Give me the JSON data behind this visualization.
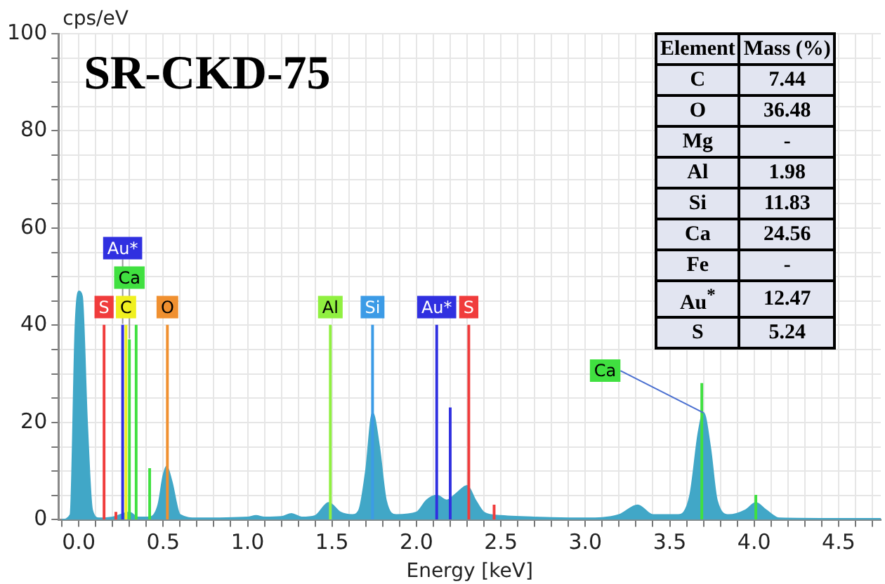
{
  "chart_data": [
    {
      "type": "area",
      "title": "SR-CKD-75",
      "xlabel": "Energy [keV]",
      "ylabel": "cps/eV",
      "xlim": [
        -0.12,
        4.75
      ],
      "ylim": [
        0,
        100
      ],
      "grid": true,
      "legend": false,
      "xticks": [
        {
          "value": -0.1,
          "label": null
        },
        {
          "value": 0,
          "label": "0.0"
        },
        {
          "value": 0.1,
          "label": null
        },
        {
          "value": 0.2,
          "label": null
        },
        {
          "value": 0.3,
          "label": null
        },
        {
          "value": 0.4,
          "label": null
        },
        0.5,
        {
          "value": 0.6,
          "label": null
        },
        {
          "value": 0.7,
          "label": null
        },
        {
          "value": 0.8,
          "label": null
        },
        {
          "value": 0.9,
          "label": null
        },
        {
          "value": 1,
          "label": "1.0"
        },
        {
          "value": 1.1,
          "label": null
        },
        {
          "value": 1.2,
          "label": null
        },
        {
          "value": 1.3,
          "label": null
        },
        {
          "value": 1.4,
          "label": null
        },
        1.5,
        {
          "value": 1.6,
          "label": null
        },
        {
          "value": 1.7,
          "label": null
        },
        {
          "value": 1.8,
          "label": null
        },
        {
          "value": 1.9,
          "label": null
        },
        {
          "value": 2,
          "label": "2.0"
        },
        {
          "value": 2.1,
          "label": null
        },
        {
          "value": 2.2,
          "label": null
        },
        {
          "value": 2.3,
          "label": null
        },
        {
          "value": 2.4,
          "label": null
        },
        2.5,
        {
          "value": 2.6,
          "label": null
        },
        {
          "value": 2.7,
          "label": null
        },
        {
          "value": 2.8,
          "label": null
        },
        {
          "value": 2.9,
          "label": null
        },
        {
          "value": 3,
          "label": "3.0"
        },
        {
          "value": 3.1,
          "label": null
        },
        {
          "value": 3.2,
          "label": null
        },
        {
          "value": 3.3,
          "label": null
        },
        {
          "value": 3.4,
          "label": null
        },
        3.5,
        {
          "value": 3.6,
          "label": null
        },
        {
          "value": 3.7,
          "label": null
        },
        {
          "value": 3.8,
          "label": null
        },
        {
          "value": 3.9,
          "label": null
        },
        {
          "value": 4,
          "label": "4.0"
        },
        {
          "value": 4.1,
          "label": null
        },
        {
          "value": 4.2,
          "label": null
        },
        {
          "value": 4.3,
          "label": null
        },
        {
          "value": 4.4,
          "label": null
        },
        4.5,
        {
          "value": 4.6,
          "label": null
        },
        {
          "value": 4.7,
          "label": null
        }
      ],
      "yticks": [
        0,
        {
          "value": 5,
          "label": null
        },
        {
          "value": 10,
          "label": null
        },
        {
          "value": 15,
          "label": null
        },
        20,
        {
          "value": 25,
          "label": null
        },
        {
          "value": 30,
          "label": null
        },
        {
          "value": 35,
          "label": null
        },
        40,
        {
          "value": 45,
          "label": null
        },
        {
          "value": 50,
          "label": null
        },
        {
          "value": 55,
          "label": null
        },
        60,
        {
          "value": 65,
          "label": null
        },
        {
          "value": 70,
          "label": null
        },
        {
          "value": 75,
          "label": null
        },
        80,
        {
          "value": 85,
          "label": null
        },
        {
          "value": 90,
          "label": null
        },
        {
          "value": 95,
          "label": null
        },
        100
      ],
      "series": [
        {
          "color": "#41a7c7",
          "x": [
            -0.1,
            -0.05,
            -0.02,
            0,
            0.02,
            0.05,
            0.08,
            0.12,
            0.2,
            0.3,
            0.35,
            0.42,
            0.47,
            0.5,
            0.52,
            0.55,
            0.6,
            0.7,
            1.0,
            1.05,
            1.1,
            1.2,
            1.26,
            1.32,
            1.4,
            1.48,
            1.55,
            1.62,
            1.66,
            1.7,
            1.74,
            1.78,
            1.82,
            1.88,
            2.0,
            2.06,
            2.12,
            2.18,
            2.24,
            2.3,
            2.35,
            2.4,
            2.5,
            2.8,
            3.0,
            3.2,
            3.31,
            3.4,
            3.55,
            3.62,
            3.67,
            3.7,
            3.74,
            3.78,
            3.85,
            3.95,
            4.01,
            4.07,
            4.15,
            4.5,
            4.75
          ],
          "values": [
            0,
            1,
            40,
            47,
            46,
            20,
            2,
            0.3,
            0.5,
            1.5,
            0.5,
            0.5,
            3,
            9,
            11,
            8,
            1,
            0.3,
            0.5,
            0.8,
            0.5,
            0.6,
            1.2,
            0.5,
            0.8,
            3.5,
            1.5,
            1,
            2,
            10,
            22,
            15,
            4,
            1,
            1.5,
            4,
            5,
            4,
            5.5,
            7,
            4,
            1.5,
            0.8,
            0.4,
            0.3,
            1,
            3,
            1,
            1,
            5,
            18,
            22,
            15,
            4,
            1,
            2,
            3.5,
            2,
            0.3,
            0.2,
            0.2
          ]
        },
        {
          "type": "bar",
          "x": [
            0.15,
            0.22,
            0.26,
            0.28,
            0.3,
            0.34,
            0.42,
            0.525,
            1.49,
            1.74,
            2.12,
            2.2,
            2.31,
            2.46,
            3.69,
            4.01
          ],
          "values": [
            40,
            1.5,
            40,
            40,
            37,
            40,
            10.5,
            40,
            40,
            40,
            40,
            23,
            40,
            3,
            28,
            5
          ],
          "colors": [
            "#f03c3c",
            "#f03c3c",
            "#3030e0",
            "#f0f020",
            "#40e040",
            "#40e040",
            "#40e040",
            "#f09030",
            "#90f040",
            "#3c9be6",
            "#3030e0",
            "#3030e0",
            "#f03c3c",
            "#f03c3c",
            "#40e040",
            "#40e040"
          ]
        }
      ],
      "annotations": [
        {
          "text": "C",
          "x": 0.28,
          "y": 40
        },
        {
          "text": "S",
          "x": 0.15,
          "y": 40
        },
        {
          "text": "Ca",
          "x": 0.3,
          "y": 37
        },
        {
          "text": "Au*",
          "x": 0.26,
          "y": 40
        },
        {
          "text": "O",
          "x": 0.525,
          "y": 40
        },
        {
          "text": "Al",
          "x": 1.49,
          "y": 40
        },
        {
          "text": "Si",
          "x": 1.74,
          "y": 40
        },
        {
          "text": "S",
          "x": 2.31,
          "y": 40
        },
        {
          "text": "Au*",
          "x": 2.12,
          "y": 40
        },
        {
          "text": "Ca",
          "x": 3.7,
          "y": 22
        },
        "Element",
        "Mass (%)",
        "C",
        "7.44",
        "O",
        "36.48",
        "Mg",
        "-",
        "Al",
        "1.98",
        "Si",
        "11.83",
        "Ca",
        "24.56",
        "Fe",
        "-",
        "Au$^{*}$",
        "12.47",
        "S",
        "5.24"
      ]
    }
  ]
}
